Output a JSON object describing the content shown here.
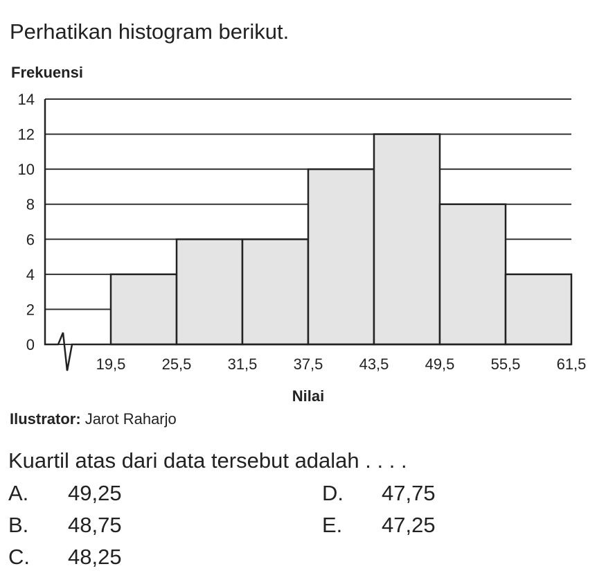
{
  "intro": "Perhatikan histogram berikut.",
  "chart_data": {
    "type": "histogram",
    "y_label": "Frekuensi",
    "x_label": "Nilai",
    "bins": [
      19.5,
      25.5,
      31.5,
      37.5,
      43.5,
      49.5,
      55.5,
      61.5
    ],
    "values": [
      4,
      6,
      6,
      10,
      12,
      8,
      4
    ],
    "color": "#e4e4e4",
    "xlim": [
      13.5,
      61.5
    ],
    "xticks": [
      {
        "value": 19.5,
        "label": "19,5"
      },
      {
        "value": 25.5,
        "label": "25,5"
      },
      {
        "value": 31.5,
        "label": "31,5"
      },
      {
        "value": 37.5,
        "label": "37,5"
      },
      {
        "value": 43.5,
        "label": "43,5"
      },
      {
        "value": 49.5,
        "label": "49,5"
      },
      {
        "value": 55.5,
        "label": "55,5"
      },
      {
        "value": 61.5,
        "label": "61,5"
      }
    ],
    "ylim": [
      0,
      14
    ],
    "yticks": [
      0,
      2,
      4,
      6,
      8,
      10,
      12,
      14
    ],
    "grid": true
  },
  "credit": {
    "label": "Ilustrator:",
    "name": "Jarot Raharjo"
  },
  "question": "Kuartil atas dari data tersebut adalah . . . .",
  "options": [
    {
      "letter": "A.",
      "text": "49,25"
    },
    {
      "letter": "B.",
      "text": "48,75"
    },
    {
      "letter": "C.",
      "text": "48,25"
    },
    {
      "letter": "D.",
      "text": "47,75"
    },
    {
      "letter": "E.",
      "text": "47,25"
    }
  ]
}
